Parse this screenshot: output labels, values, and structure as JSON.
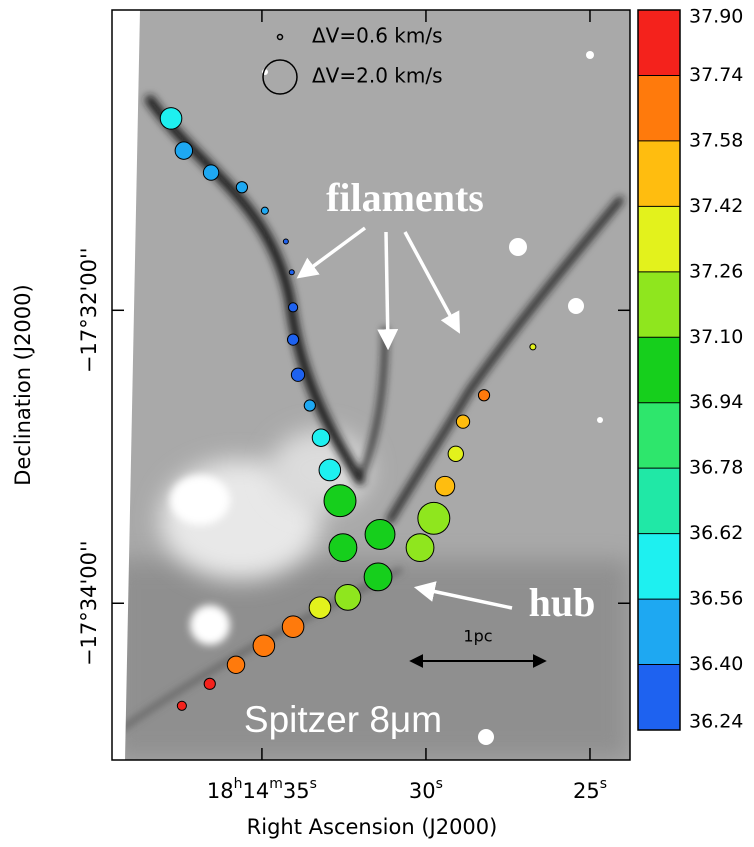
{
  "chart_data": {
    "type": "scatter",
    "xlabel": "Right Ascension (J2000)",
    "ylabel": "Declination (J2000)",
    "xlim": [
      39.57,
      23.78
    ],
    "xticks": [
      {
        "value": 35,
        "label": "18h14m35s"
      },
      {
        "value": 30,
        "label": "30s"
      },
      {
        "value": 25,
        "label": "25s"
      }
    ],
    "ylim": [
      -35.07,
      -29.95
    ],
    "yticks": [
      {
        "value": -32,
        "label": "−17°32'00''"
      },
      {
        "value": -34,
        "label": "−17°34'00''"
      }
    ],
    "points": {
      "x": [
        37.77,
        37.38,
        36.55,
        35.61,
        34.91,
        34.27,
        34.09,
        34.05,
        34.05,
        33.9,
        33.54,
        33.2,
        32.93,
        32.62,
        32.53,
        31.4,
        31.46,
        32.38,
        33.23,
        34.05,
        34.94,
        35.79,
        36.59,
        37.44,
        26.74,
        28.23,
        28.87,
        29.09,
        29.42,
        29.76,
        30.18
      ],
      "y": [
        -30.69,
        -30.91,
        -31.06,
        -31.16,
        -31.32,
        -31.53,
        -31.74,
        -31.98,
        -32.2,
        -32.44,
        -32.65,
        -32.87,
        -33.09,
        -33.3,
        -33.62,
        -33.53,
        -33.82,
        -33.96,
        -34.03,
        -34.16,
        -34.29,
        -34.42,
        -34.55,
        -34.7,
        -32.25,
        -32.58,
        -32.76,
        -32.98,
        -33.2,
        -33.42,
        -33.62
      ],
      "size": [
        1.4,
        1.2,
        1.1,
        0.9,
        0.7,
        0.6,
        0.6,
        0.8,
        0.9,
        1.0,
        0.9,
        1.2,
        1.4,
        1.9,
        1.7,
        1.8,
        1.7,
        1.6,
        1.4,
        1.4,
        1.4,
        1.2,
        0.9,
        0.8,
        0.65,
        0.9,
        1.0,
        1.1,
        1.3,
        1.9,
        1.7
      ],
      "velocity": [
        36.59,
        36.48,
        36.48,
        36.48,
        36.48,
        36.32,
        36.32,
        36.32,
        36.32,
        36.32,
        36.48,
        36.59,
        36.59,
        37.02,
        37.02,
        37.02,
        37.02,
        37.18,
        37.34,
        37.66,
        37.66,
        37.7,
        37.82,
        37.82,
        37.34,
        37.66,
        37.5,
        37.34,
        37.5,
        37.18,
        37.18
      ]
    },
    "size_legend": [
      {
        "value": 0.6,
        "label": "ΔV=0.6 km/s"
      },
      {
        "value": 2.0,
        "label": "ΔV=2.0 km/s"
      }
    ],
    "colorbar": {
      "ticks": [
        {
          "value": 37.9,
          "label": "37.90"
        },
        37.74,
        37.58,
        37.42,
        37.26,
        {
          "value": 37.1,
          "label": "37.10"
        },
        36.94,
        36.78,
        36.62,
        36.56,
        {
          "value": 36.4,
          "label": "36.40"
        },
        36.24
      ],
      "colors": [
        "#f4221c",
        "#ff7a0c",
        "#ffbd0f",
        "#e3f21c",
        "#8fe61e",
        "#16cf1c",
        "#2ee66c",
        "#20e8a6",
        "#1ef0f0",
        "#1ea8f2",
        "#1e62f0"
      ]
    },
    "annotations": [
      "filaments",
      "hub",
      "1pc",
      "Spitzer 8μm"
    ]
  }
}
